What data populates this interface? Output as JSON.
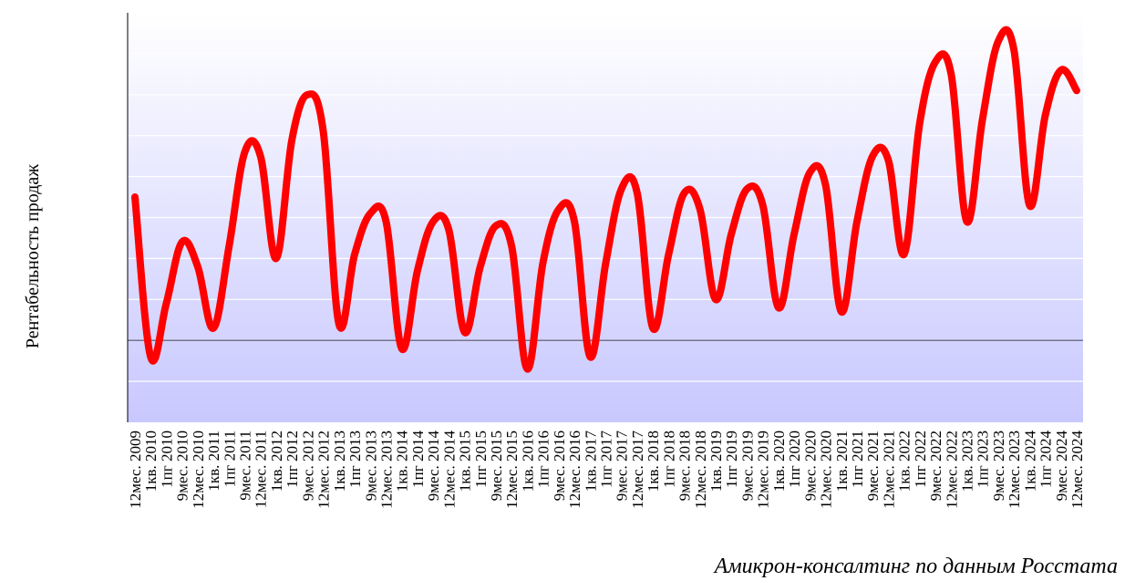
{
  "chart_data": {
    "type": "line",
    "ylabel": "Рентабельность продаж",
    "xlabel": "",
    "source": "Амикрон-консалтинг по данным Росстата",
    "grid": true,
    "legend": "none",
    "colors": {
      "line": "#ff0000",
      "zero_line": "#555566",
      "grid": "#ffffff",
      "bg_top": "#ffffff",
      "bg_bottom": "#c8c8ff",
      "axis": "#000000"
    },
    "ylim": [
      -2,
      8
    ],
    "x": [
      "12мес. 2009",
      "1кв. 2010",
      "1пг 2010",
      "9мес. 2010",
      "12мес. 2010",
      "1кв. 2011",
      "1пг 2011",
      "9мес. 2011",
      "12мес. 2011",
      "1кв. 2012",
      "1пг 2012",
      "9мес. 2012",
      "12мес. 2012",
      "1кв. 2013",
      "1пг 2013",
      "9мес. 2013",
      "12мес. 2013",
      "1кв. 2014",
      "1пг 2014",
      "9мес. 2014",
      "12мес. 2014",
      "1кв. 2015",
      "1пг 2015",
      "9мес. 2015",
      "12мес. 2015",
      "1кв. 2016",
      "1пг 2016",
      "9мес. 2016",
      "12мес. 2016",
      "1кв. 2017",
      "1пг 2017",
      "9мес. 2017",
      "12мес. 2017",
      "1кв. 2018",
      "1пг 2018",
      "9мес. 2018",
      "12мес. 2018",
      "1кв. 2019",
      "1пг 2019",
      "9мес. 2019",
      "12мес. 2019",
      "1кв. 2020",
      "1пг 2020",
      "9мес. 2020",
      "12мес. 2020",
      "1кв. 2021",
      "1пг 2021",
      "9мес. 2021",
      "12мес. 2021",
      "1кв. 2022",
      "1пг 2022",
      "9мес. 2022",
      "12мес. 2022",
      "1кв. 2023",
      "1пг 2023",
      "9мес. 2023",
      "12мес. 2023",
      "1кв. 2024",
      "1пг 2024",
      "9мес. 2024",
      "12мес. 2024"
    ],
    "series": [
      {
        "values": [
          3.5,
          -0.4,
          0.9,
          2.4,
          1.8,
          0.3,
          2.3,
          4.6,
          4.5,
          2.0,
          4.9,
          6.0,
          5.1,
          0.4,
          2.1,
          3.1,
          2.9,
          -0.2,
          1.7,
          2.9,
          2.7,
          0.2,
          1.8,
          2.8,
          2.3,
          -0.7,
          1.9,
          3.2,
          2.9,
          -0.4,
          1.9,
          3.7,
          3.6,
          0.3,
          2.1,
          3.6,
          3.2,
          1.0,
          2.6,
          3.7,
          3.3,
          0.8,
          2.6,
          4.1,
          3.8,
          0.7,
          2.9,
          4.5,
          4.4,
          2.1,
          5.3,
          6.8,
          6.5,
          2.9,
          5.4,
          7.3,
          7.1,
          3.3,
          5.5,
          6.6,
          6.1
        ]
      }
    ]
  }
}
